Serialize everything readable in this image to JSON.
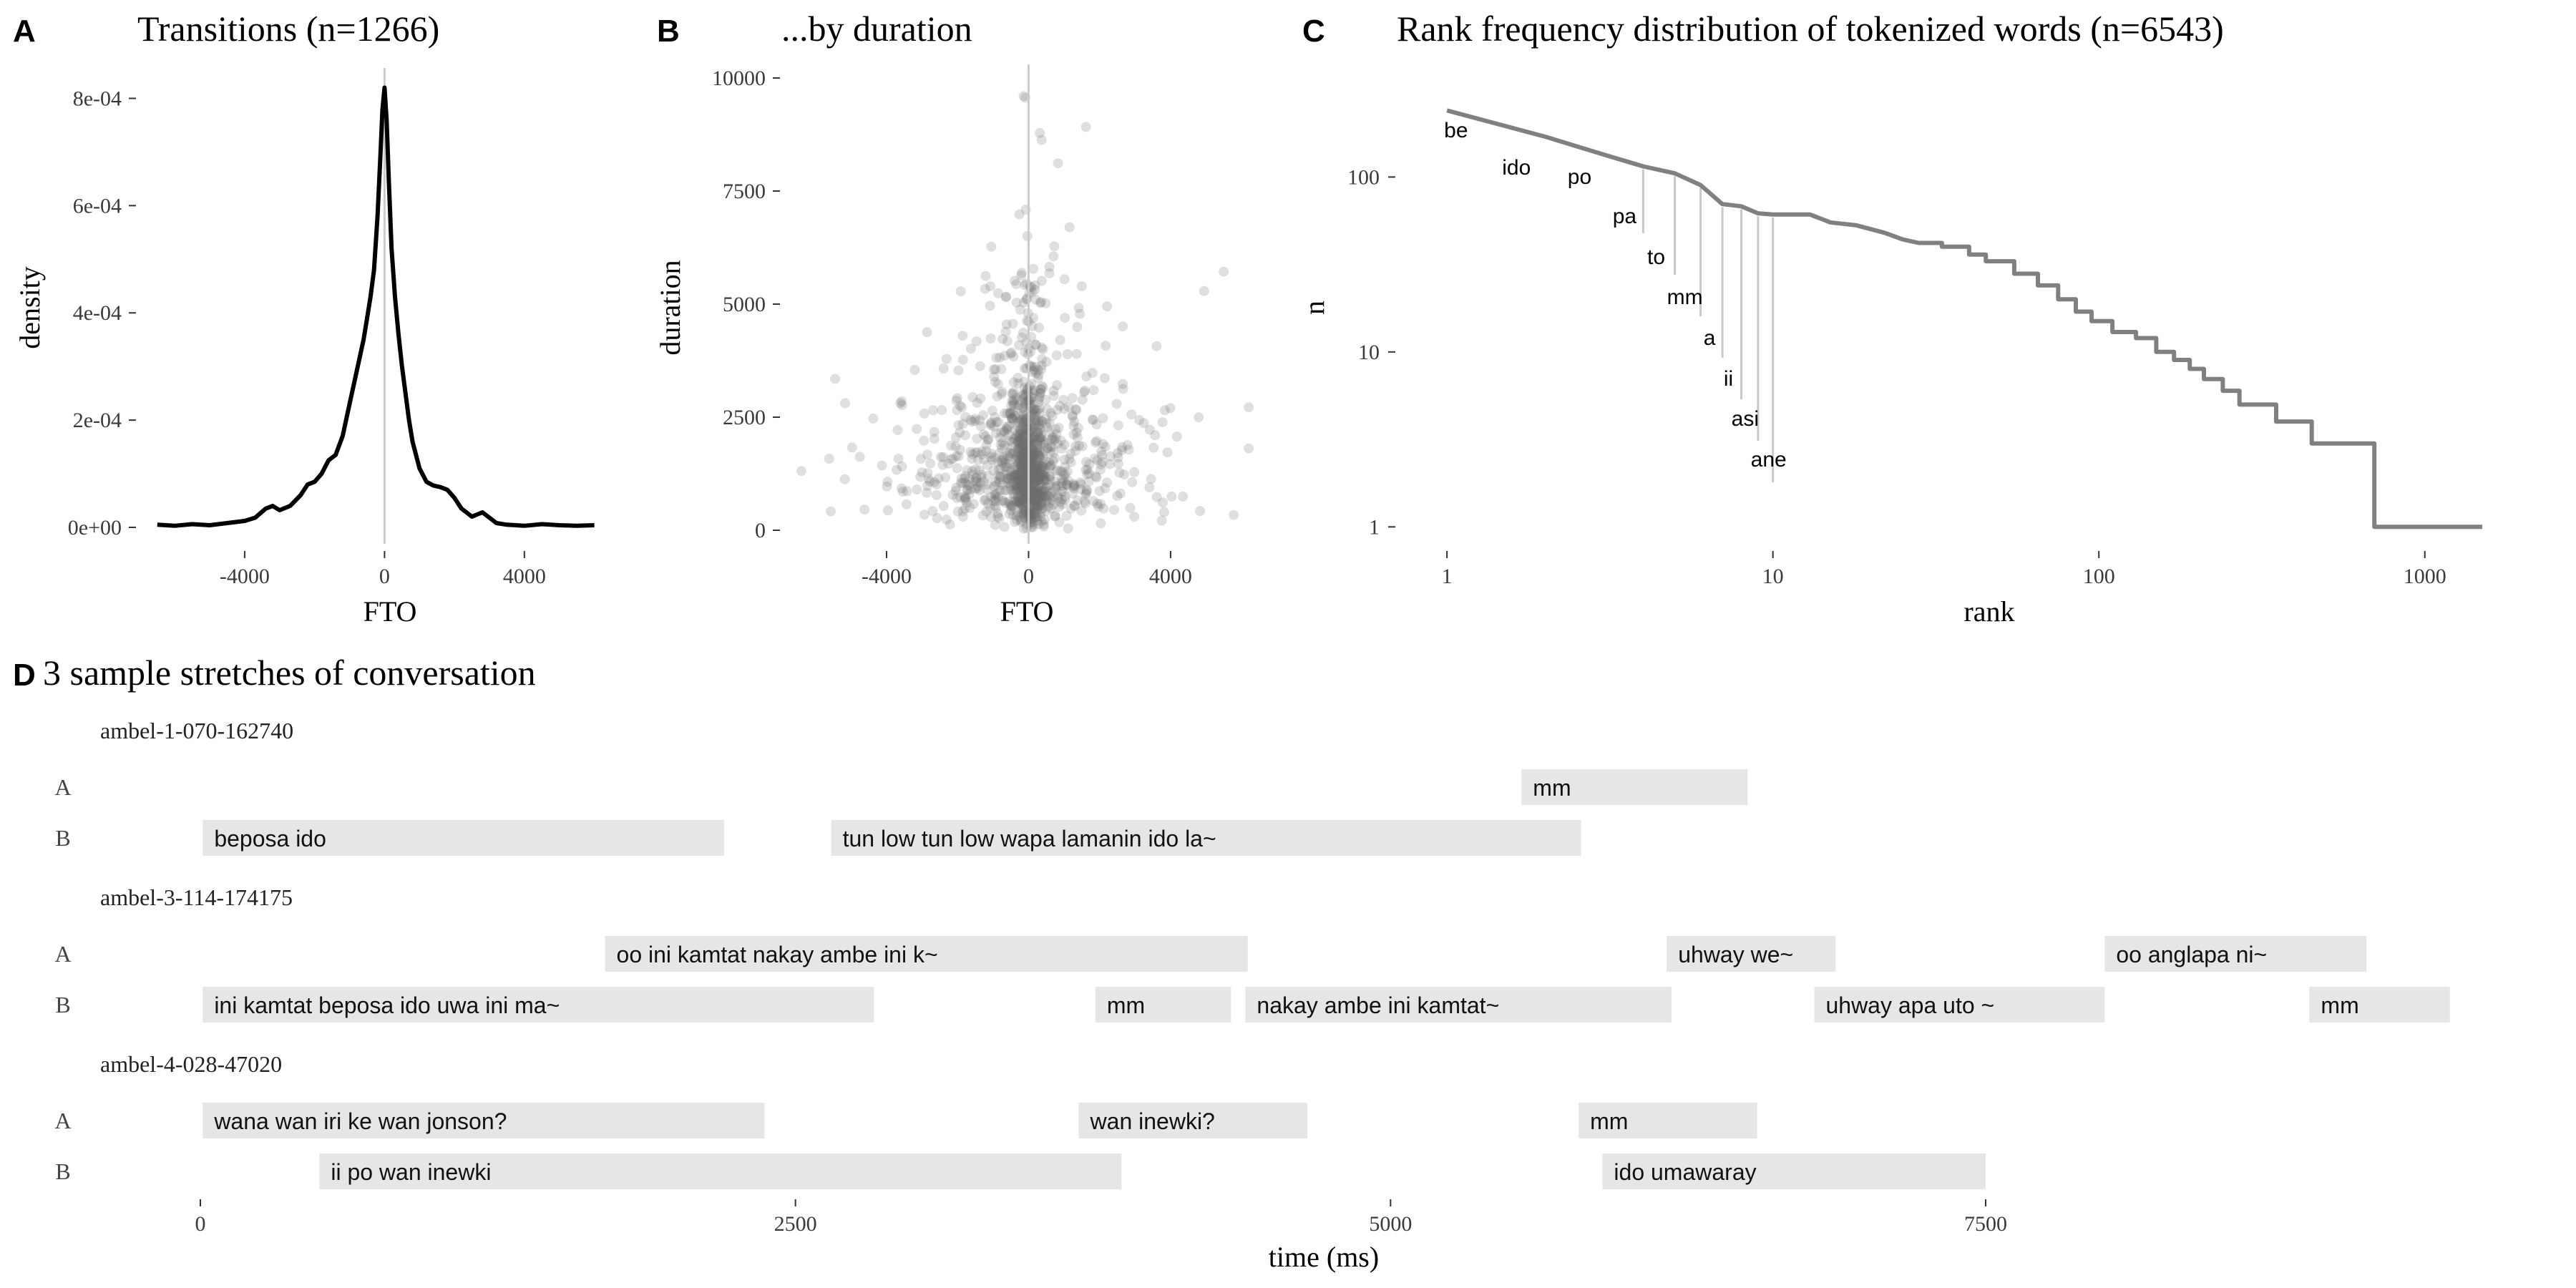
{
  "colors": {
    "density_line": "#000000",
    "rank_line": "#808080",
    "zero_line": "#cccccc",
    "point_fill": "#6e6e6e",
    "segment_fill": "#e6e6e6",
    "tick": "#333333"
  },
  "chart_data": [
    {
      "panel": "A",
      "type": "line",
      "title": "Transitions (n=1266)",
      "xlabel": "FTO",
      "ylabel": "density",
      "xlim": [
        -6700,
        6500
      ],
      "ylim": [
        -2e-05,
        0.00085
      ],
      "x_ticks": [
        -4000,
        0,
        4000
      ],
      "x_tick_labels": [
        "-4000",
        "0",
        "4000"
      ],
      "y_ticks": [
        0,
        0.0002,
        0.0004,
        0.0006,
        0.0008
      ],
      "y_tick_labels": [
        "0e+00",
        "2e-04",
        "4e-04",
        "6e-04",
        "8e-04"
      ],
      "reference_line_x": 0,
      "series": [
        {
          "x": [
            -6500,
            -6000,
            -5500,
            -5000,
            -4500,
            -4000,
            -3700,
            -3400,
            -3200,
            -3000,
            -2700,
            -2400,
            -2200,
            -2000,
            -1800,
            -1600,
            -1400,
            -1200,
            -1000,
            -800,
            -600,
            -500,
            -400,
            -300,
            -200,
            -120,
            -60,
            0,
            60,
            120,
            200,
            300,
            400,
            500,
            600,
            700,
            800,
            1000,
            1200,
            1400,
            1600,
            1800,
            2000,
            2200,
            2500,
            2800,
            3000,
            3200,
            3500,
            4000,
            4500,
            5000,
            5500,
            6000
          ],
          "y": [
            5e-06,
            3e-06,
            6e-06,
            4e-06,
            8e-06,
            1.2e-05,
            1.8e-05,
            3.5e-05,
            4e-05,
            3.2e-05,
            4e-05,
            6e-05,
            8e-05,
            8.5e-05,
            0.0001,
            0.000125,
            0.000135,
            0.00017,
            0.00023,
            0.00029,
            0.00035,
            0.00039,
            0.00043,
            0.00048,
            0.00058,
            0.00069,
            0.00078,
            0.00082,
            0.00076,
            0.00065,
            0.00052,
            0.00043,
            0.00036,
            0.0003,
            0.00025,
            0.0002,
            0.00016,
            0.00011,
            8.5e-05,
            7.8e-05,
            7.5e-05,
            7e-05,
            5.5e-05,
            3.5e-05,
            2e-05,
            2.8e-05,
            1.8e-05,
            8e-06,
            5e-06,
            3e-06,
            6e-06,
            4e-06,
            3e-06,
            4e-06
          ]
        }
      ]
    },
    {
      "panel": "B",
      "type": "scatter",
      "title": "...by duration",
      "xlabel": "FTO",
      "ylabel": "duration",
      "xlim": [
        -6700,
        6400
      ],
      "ylim": [
        -300,
        10300
      ],
      "x_ticks": [
        -4000,
        0,
        4000
      ],
      "x_tick_labels": [
        "-4000",
        "0",
        "4000"
      ],
      "y_ticks": [
        0,
        2500,
        5000,
        7500,
        10000
      ],
      "y_tick_labels": [
        "0",
        "2500",
        "5000",
        "7500",
        "10000"
      ],
      "reference_line_x": 0,
      "n_points": 1266
    },
    {
      "panel": "C",
      "type": "line",
      "title": "Rank frequency distribution of tokenized words (n=6543)",
      "xlabel": "rank",
      "ylabel": "n",
      "x_scale": "log",
      "y_scale": "log",
      "xlim": [
        0.85,
        1800
      ],
      "ylim": [
        0.8,
        420
      ],
      "x_ticks": [
        1,
        10,
        100,
        1000
      ],
      "x_tick_labels": [
        "1",
        "10",
        "100",
        "1000"
      ],
      "y_ticks": [
        1,
        10,
        100
      ],
      "y_tick_labels": [
        "1",
        "10",
        "100"
      ],
      "series": [
        {
          "x": [
            1,
            2,
            3,
            4,
            5,
            6,
            7,
            8,
            9,
            10,
            13,
            15,
            18,
            22,
            25,
            28,
            33,
            40,
            45,
            55,
            65,
            75,
            85,
            95,
            110,
            130,
            150,
            170,
            190,
            210,
            240,
            270,
            300,
            350,
            400,
            450,
            500,
            600,
            700,
            800,
            900,
            1000,
            1200,
            1500
          ],
          "y": [
            240,
            170,
            135,
            115,
            105,
            90,
            70,
            68,
            62,
            61,
            61,
            55,
            53,
            48,
            44,
            42,
            40,
            36,
            33,
            28,
            24,
            20,
            17,
            15,
            13,
            12,
            10,
            9,
            8,
            7,
            6,
            5,
            5,
            4,
            4,
            3,
            3,
            3,
            1,
            1,
            1,
            1,
            1,
            1
          ]
        }
      ],
      "word_labels": [
        {
          "word": "be",
          "rank": 1
        },
        {
          "word": "ido",
          "rank": 2
        },
        {
          "word": "po",
          "rank": 3
        },
        {
          "word": "pa",
          "rank": 4
        },
        {
          "word": "to",
          "rank": 5
        },
        {
          "word": "mm",
          "rank": 6
        },
        {
          "word": "a",
          "rank": 7
        },
        {
          "word": "ii",
          "rank": 8
        },
        {
          "word": "asi",
          "rank": 9
        },
        {
          "word": "ane",
          "rank": 10
        }
      ]
    },
    {
      "panel": "D",
      "type": "timeline",
      "title": "3 sample stretches of conversation",
      "xlabel": "time (ms)",
      "xlim": [
        -600,
        9700
      ],
      "x_ticks": [
        0,
        2500,
        5000,
        7500
      ],
      "x_tick_labels": [
        "0",
        "2500",
        "5000",
        "7500"
      ],
      "conversations": [
        {
          "id": "ambel-1-070-162740",
          "segments": [
            {
              "speaker": "A",
              "start": 5550,
              "end": 6500,
              "text": "mm"
            },
            {
              "speaker": "B",
              "start": 10,
              "end": 2200,
              "text": "beposa ido"
            },
            {
              "speaker": "B",
              "start": 2650,
              "end": 5800,
              "text": "tun low tun low wapa lamanin ido la~"
            }
          ]
        },
        {
          "id": "ambel-3-114-174175",
          "segments": [
            {
              "speaker": "A",
              "start": 1700,
              "end": 4400,
              "text": "oo ini kamtat nakay ambe ini k~"
            },
            {
              "speaker": "A",
              "start": 6160,
              "end": 6870,
              "text": "uhway we~"
            },
            {
              "speaker": "A",
              "start": 8000,
              "end": 9100,
              "text": "oo anglapa ni~"
            },
            {
              "speaker": "B",
              "start": 10,
              "end": 2830,
              "text": "ini kamtat beposa ido uwa ini ma~"
            },
            {
              "speaker": "B",
              "start": 3760,
              "end": 4330,
              "text": "mm"
            },
            {
              "speaker": "B",
              "start": 4390,
              "end": 6180,
              "text": "nakay ambe ini kamtat~"
            },
            {
              "speaker": "B",
              "start": 6780,
              "end": 8000,
              "text": "uhway apa uto ~"
            },
            {
              "speaker": "B",
              "start": 8860,
              "end": 9450,
              "text": "mm"
            }
          ]
        },
        {
          "id": "ambel-4-028-47020",
          "segments": [
            {
              "speaker": "A",
              "start": 10,
              "end": 2370,
              "text": "wana wan iri ke wan jonson?"
            },
            {
              "speaker": "A",
              "start": 3690,
              "end": 4650,
              "text": "wan inewki?"
            },
            {
              "speaker": "A",
              "start": 5790,
              "end": 6540,
              "text": "mm"
            },
            {
              "speaker": "B",
              "start": 500,
              "end": 3870,
              "text": "ii po wan inewki"
            },
            {
              "speaker": "B",
              "start": 5890,
              "end": 7500,
              "text": "ido umawaray"
            }
          ]
        }
      ]
    }
  ]
}
